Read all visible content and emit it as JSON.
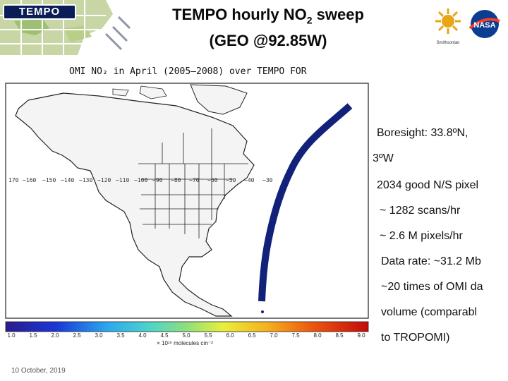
{
  "header": {
    "logo_text": "TEMPO",
    "title_line1_pre": "TEMPO hourly NO",
    "title_line1_sub": "2",
    "title_line1_post": " sweep",
    "title_line2": "(GEO @92.85W)",
    "smithsonian_label": "Smithsonian",
    "nasa_label": "NASA"
  },
  "figure": {
    "title": "OMI NO₂ in April (2005–2008) over TEMPO FOR",
    "lon_labels": [
      "170",
      "−160",
      "−150",
      "−140",
      "−130",
      "−120",
      "−110",
      "−100",
      "−90",
      "−80",
      "−70",
      "−60",
      "−50",
      "−40",
      "−30"
    ],
    "colorbar_ticks": [
      "1.0",
      "1.5",
      "2.0",
      "2.5",
      "3.0",
      "3.5",
      "4.0",
      "4.5",
      "5.0",
      "5.5",
      "6.0",
      "6.5",
      "7.0",
      "7.5",
      "8.0",
      "8.5",
      "9.0"
    ],
    "colorbar_unit": "× 10¹⁵ molecules cm⁻²",
    "swath_color": "#12227a"
  },
  "bullets": [
    "Boresight: 33.8ºN,",
    "3ºW",
    "2034 good N/S pixel",
    "~ 1282 scans/hr",
    "~ 2.6 M pixels/hr",
    "Data rate: ~31.2 Mb",
    "~20 times of OMI da",
    "volume (comparabl",
    "to TROPOMI)"
  ],
  "footer": {
    "date": "10 October, 2019"
  }
}
